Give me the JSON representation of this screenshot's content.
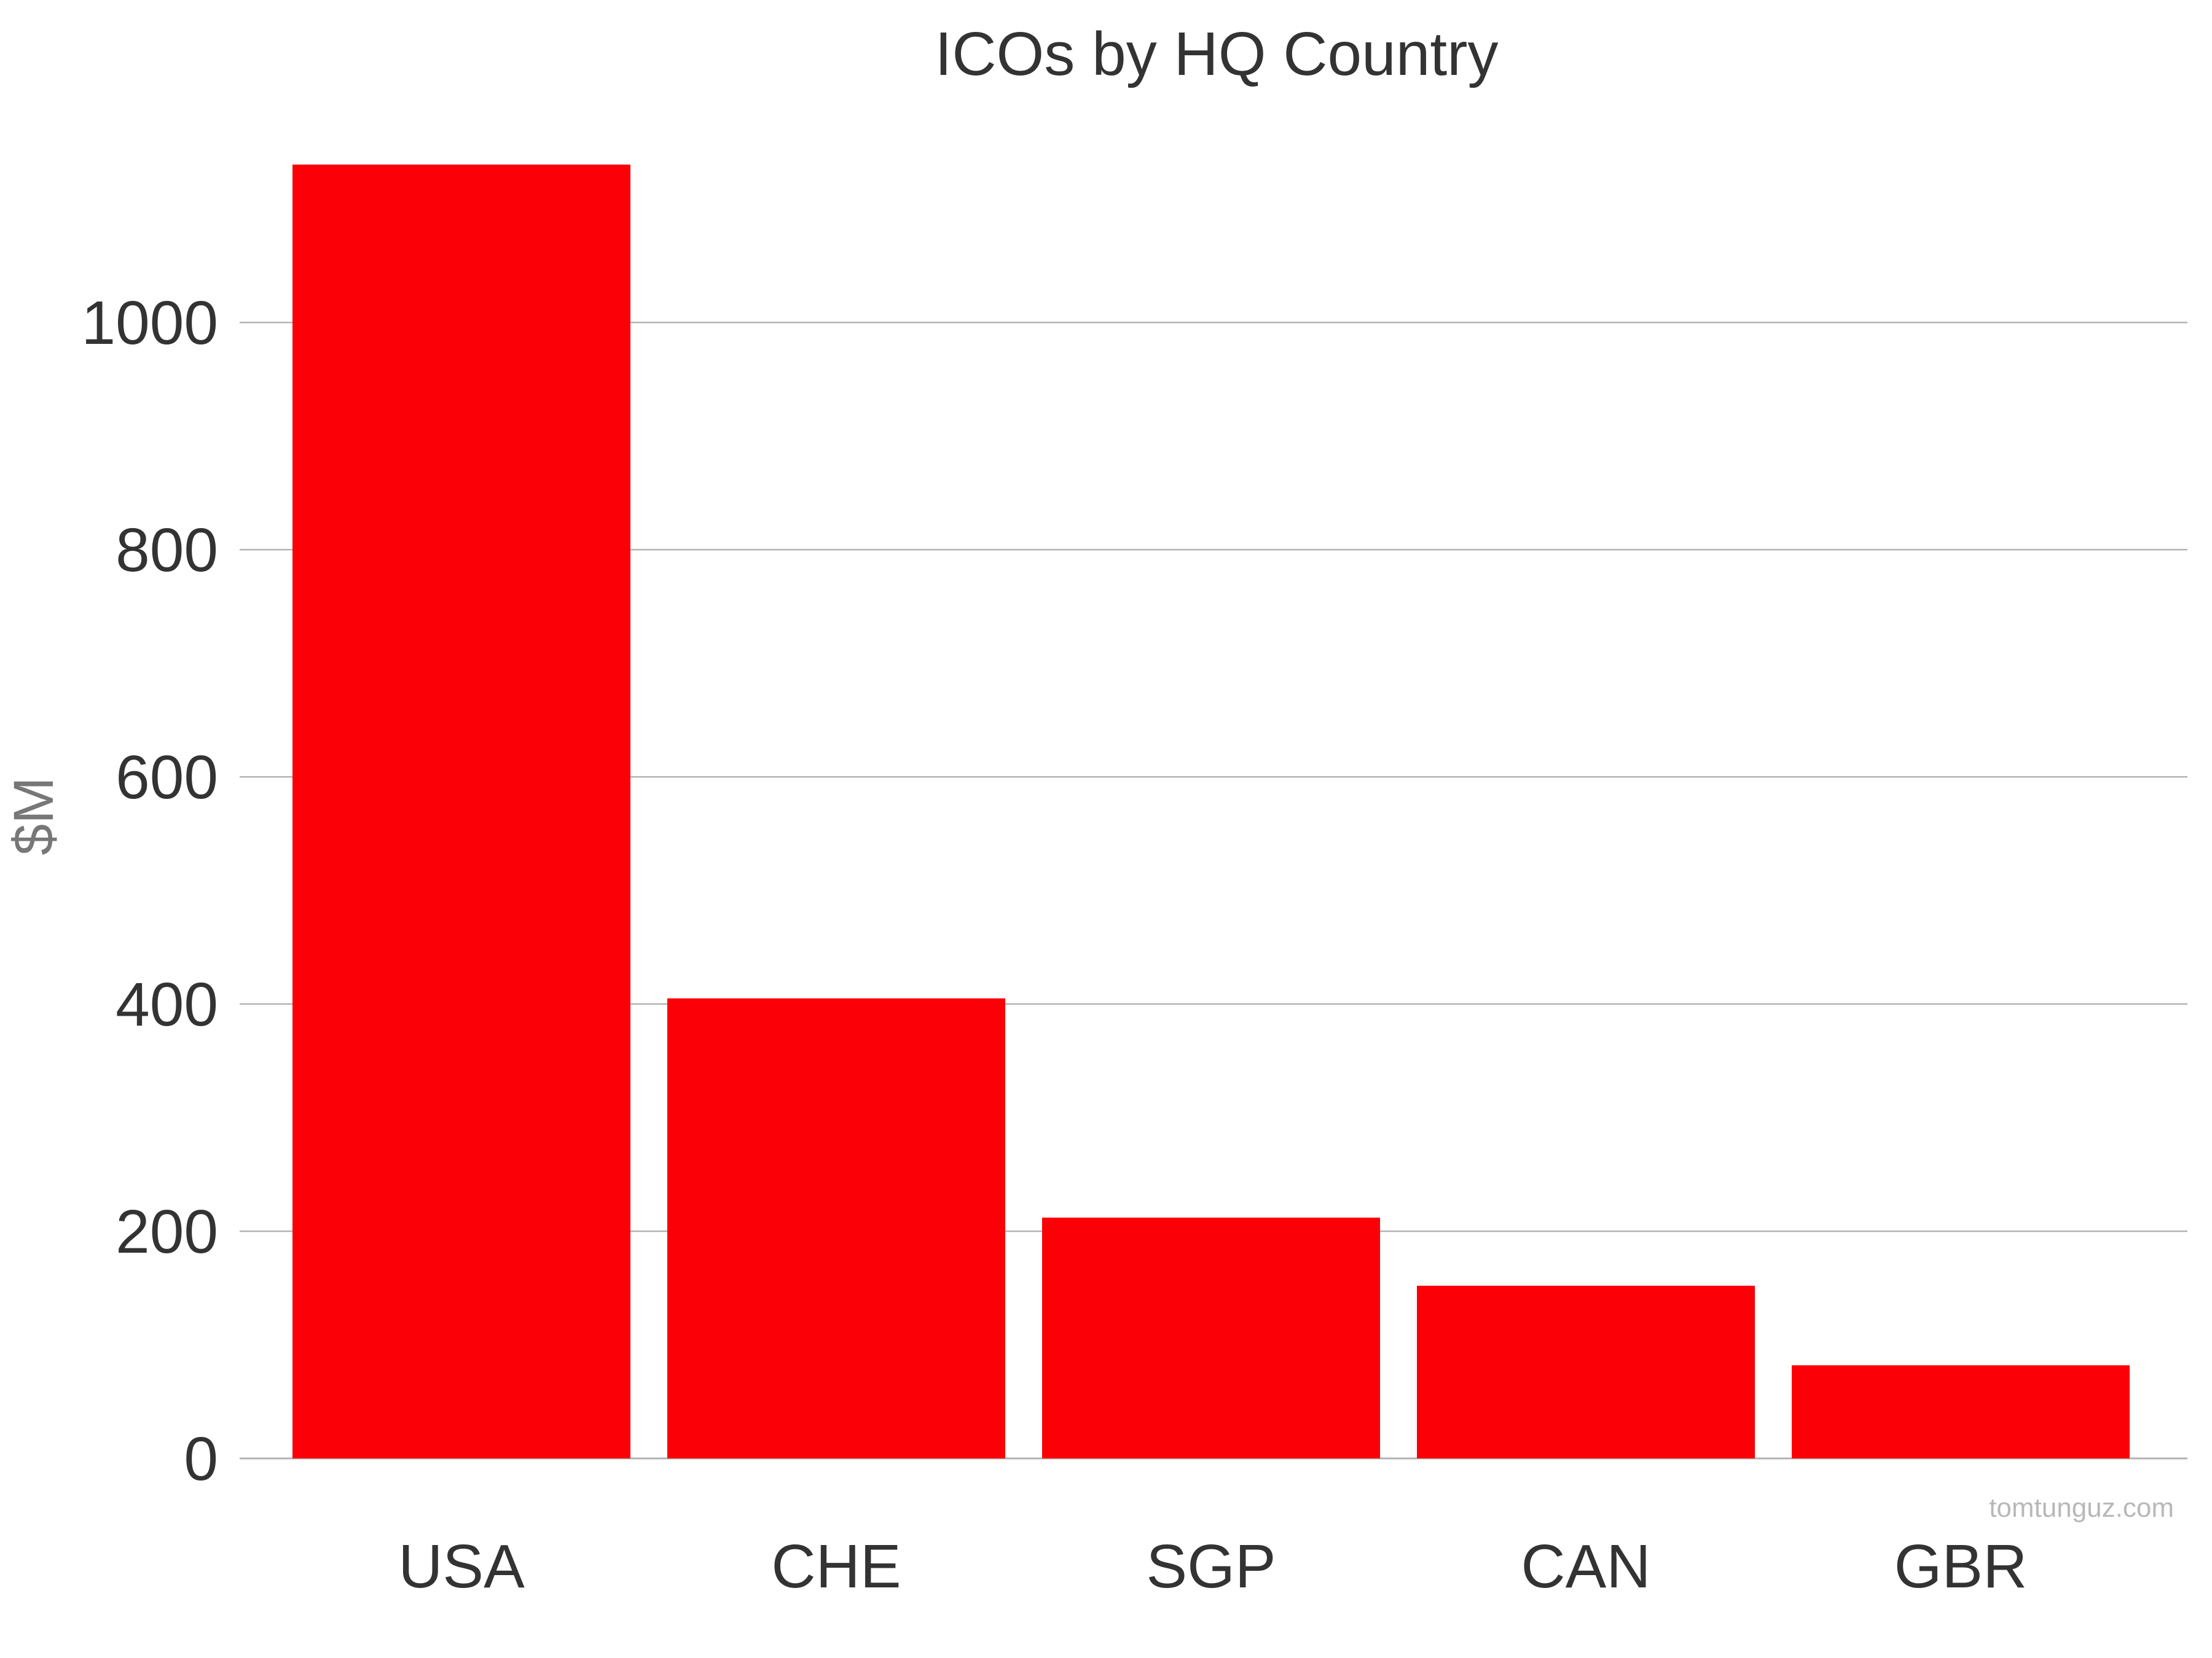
{
  "chart_data": {
    "type": "bar",
    "title": "ICOs by HQ Country",
    "xlabel": "",
    "ylabel": "$M",
    "categories": [
      "USA",
      "CHE",
      "SGP",
      "CAN",
      "GBR"
    ],
    "values": [
      1139,
      405,
      212,
      152,
      82
    ],
    "ylim": [
      0,
      1139
    ],
    "yticks": [
      0,
      200,
      400,
      600,
      800,
      1000
    ],
    "grid": true,
    "legend": "none",
    "bar_color": "#fb0007"
  },
  "colors": {
    "bar": "#fb0007",
    "grid": "#b3b3b3",
    "text": "#333333",
    "ylabel": "#777777",
    "watermark": "#b8b8b8"
  },
  "watermark": "tomtunguz.com"
}
